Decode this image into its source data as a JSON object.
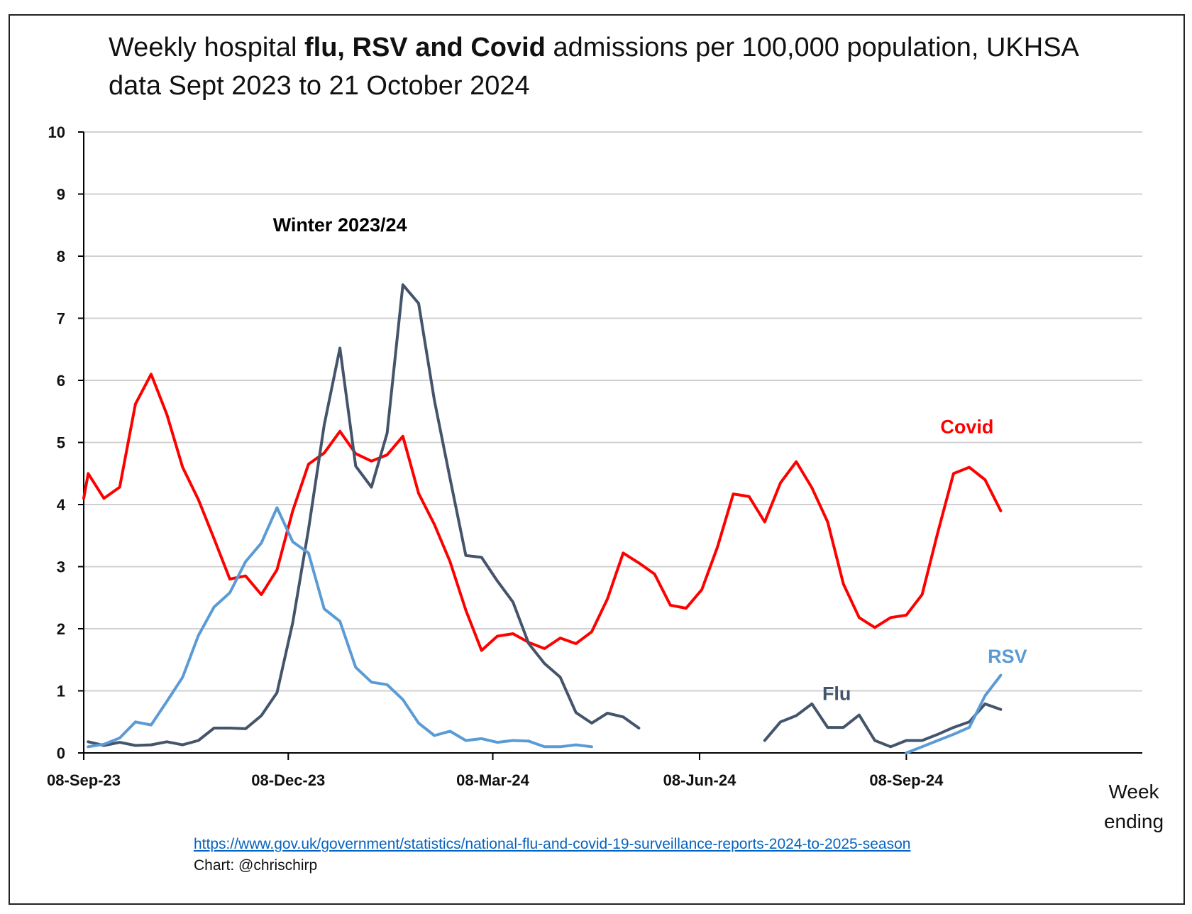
{
  "title": {
    "part1": "Weekly hospital ",
    "bold": "flu, RSV and Covid",
    "part2": " admissions per 100,000 population, UKHSA data Sept 2023 to 21 October 2024"
  },
  "footer": {
    "source_url": "https://www.gov.uk/government/statistics/national-flu-and-covid-19-surveillance-reports-2024-to-2025-season",
    "credit": "Chart: @chrischirp"
  },
  "colors": {
    "covid": "#ff0000",
    "flu": "#44546a",
    "rsv": "#5b9bd5",
    "grid": "#d0d0d0",
    "axis": "#000000"
  },
  "chart_data": {
    "type": "line",
    "xlabel": "Week ending",
    "ylabel": "",
    "ylim": [
      0,
      10
    ],
    "yticks": [
      0,
      1,
      2,
      3,
      4,
      5,
      6,
      7,
      8,
      9,
      10
    ],
    "xlim": [
      "2023-09-08",
      "2024-12-22"
    ],
    "xticks": [
      {
        "date": "2023-09-08",
        "label": "08-Sep-23"
      },
      {
        "date": "2023-12-08",
        "label": "08-Dec-23"
      },
      {
        "date": "2024-03-08",
        "label": "08-Mar-24"
      },
      {
        "date": "2024-06-08",
        "label": "08-Jun-24"
      },
      {
        "date": "2024-09-08",
        "label": "08-Sep-24"
      }
    ],
    "grid": true,
    "annotations": [
      {
        "text": "Winter 2023/24",
        "date": "2023-12-31",
        "y": 8.4,
        "color": "#000000"
      },
      {
        "text": "Covid",
        "date": "2024-10-05",
        "y": 5.15,
        "color": "#ff0000"
      },
      {
        "text": "Flu",
        "date": "2024-08-08",
        "y": 0.85,
        "color": "#44546a"
      },
      {
        "text": "RSV",
        "date": "2024-10-23",
        "y": 1.45,
        "color": "#5b9bd5"
      }
    ],
    "series": [
      {
        "name": "Covid",
        "color": "#ff0000",
        "points": [
          [
            "2023-09-08",
            4.1
          ],
          [
            "2023-09-10",
            4.5
          ],
          [
            "2023-09-17",
            4.1
          ],
          [
            "2023-09-24",
            4.28
          ],
          [
            "2023-10-01",
            5.62
          ],
          [
            "2023-10-08",
            6.1
          ],
          [
            "2023-10-15",
            5.45
          ],
          [
            "2023-10-22",
            4.6
          ],
          [
            "2023-10-29",
            4.08
          ],
          [
            "2023-11-05",
            3.45
          ],
          [
            "2023-11-12",
            2.8
          ],
          [
            "2023-11-19",
            2.85
          ],
          [
            "2023-11-26",
            2.55
          ],
          [
            "2023-12-03",
            2.95
          ],
          [
            "2023-12-10",
            3.9
          ],
          [
            "2023-12-17",
            4.65
          ],
          [
            "2023-12-24",
            4.83
          ],
          [
            "2023-12-31",
            5.18
          ],
          [
            "2024-01-07",
            4.82
          ],
          [
            "2024-01-14",
            4.7
          ],
          [
            "2024-01-21",
            4.8
          ],
          [
            "2024-01-28",
            5.1
          ],
          [
            "2024-02-04",
            4.18
          ],
          [
            "2024-02-11",
            3.68
          ],
          [
            "2024-02-18",
            3.08
          ],
          [
            "2024-02-25",
            2.3
          ],
          [
            "2024-03-03",
            1.65
          ],
          [
            "2024-03-10",
            1.88
          ],
          [
            "2024-03-17",
            1.92
          ],
          [
            "2024-03-24",
            1.78
          ],
          [
            "2024-03-31",
            1.68
          ],
          [
            "2024-04-07",
            1.85
          ],
          [
            "2024-04-14",
            1.76
          ],
          [
            "2024-04-21",
            1.95
          ],
          [
            "2024-04-28",
            2.48
          ],
          [
            "2024-05-05",
            3.22
          ],
          [
            "2024-05-12",
            3.06
          ],
          [
            "2024-05-19",
            2.88
          ],
          [
            "2024-05-26",
            2.38
          ],
          [
            "2024-06-02",
            2.33
          ],
          [
            "2024-06-09",
            2.63
          ],
          [
            "2024-06-16",
            3.32
          ],
          [
            "2024-06-23",
            4.17
          ],
          [
            "2024-06-30",
            4.13
          ],
          [
            "2024-07-07",
            3.72
          ],
          [
            "2024-07-14",
            4.35
          ],
          [
            "2024-07-21",
            4.69
          ],
          [
            "2024-07-28",
            4.27
          ],
          [
            "2024-08-04",
            3.72
          ],
          [
            "2024-08-11",
            2.72
          ],
          [
            "2024-08-18",
            2.18
          ],
          [
            "2024-08-25",
            2.02
          ],
          [
            "2024-09-01",
            2.18
          ],
          [
            "2024-09-08",
            2.22
          ],
          [
            "2024-09-15",
            2.55
          ],
          [
            "2024-09-22",
            3.55
          ],
          [
            "2024-09-29",
            4.5
          ],
          [
            "2024-10-06",
            4.6
          ],
          [
            "2024-10-13",
            4.4
          ],
          [
            "2024-10-20",
            3.9
          ]
        ]
      },
      {
        "name": "Flu",
        "color": "#44546a",
        "points": [
          [
            "2023-09-10",
            0.18
          ],
          [
            "2023-09-17",
            0.12
          ],
          [
            "2023-09-24",
            0.17
          ],
          [
            "2023-10-01",
            0.12
          ],
          [
            "2023-10-08",
            0.13
          ],
          [
            "2023-10-15",
            0.18
          ],
          [
            "2023-10-22",
            0.13
          ],
          [
            "2023-10-29",
            0.2
          ],
          [
            "2023-11-05",
            0.4
          ],
          [
            "2023-11-12",
            0.4
          ],
          [
            "2023-11-19",
            0.39
          ],
          [
            "2023-11-26",
            0.6
          ],
          [
            "2023-12-03",
            0.97
          ],
          [
            "2023-12-10",
            2.1
          ],
          [
            "2023-12-17",
            3.6
          ],
          [
            "2023-12-24",
            5.28
          ],
          [
            "2023-12-31",
            6.52
          ],
          [
            "2024-01-07",
            4.62
          ],
          [
            "2024-01-14",
            4.28
          ],
          [
            "2024-01-21",
            5.15
          ],
          [
            "2024-01-28",
            7.54
          ],
          [
            "2024-02-04",
            7.24
          ],
          [
            "2024-02-11",
            5.68
          ],
          [
            "2024-02-18",
            4.42
          ],
          [
            "2024-02-25",
            3.18
          ],
          [
            "2024-03-03",
            3.15
          ],
          [
            "2024-03-10",
            2.77
          ],
          [
            "2024-03-17",
            2.43
          ],
          [
            "2024-03-24",
            1.76
          ],
          [
            "2024-03-31",
            1.44
          ],
          [
            "2024-04-07",
            1.22
          ],
          [
            "2024-04-14",
            0.65
          ],
          [
            "2024-04-21",
            0.48
          ],
          [
            "2024-04-28",
            0.64
          ],
          [
            "2024-05-05",
            0.58
          ],
          [
            "2024-05-12",
            0.4
          ],
          null,
          [
            "2024-07-07",
            0.2
          ],
          [
            "2024-07-14",
            0.5
          ],
          [
            "2024-07-21",
            0.6
          ],
          [
            "2024-07-28",
            0.79
          ],
          [
            "2024-08-04",
            0.41
          ],
          [
            "2024-08-11",
            0.41
          ],
          [
            "2024-08-18",
            0.61
          ],
          [
            "2024-08-25",
            0.2
          ],
          [
            "2024-09-01",
            0.1
          ],
          [
            "2024-09-08",
            0.2
          ],
          [
            "2024-09-15",
            0.2
          ],
          [
            "2024-09-22",
            0.3
          ],
          [
            "2024-09-29",
            0.41
          ],
          [
            "2024-10-06",
            0.5
          ],
          [
            "2024-10-13",
            0.79
          ],
          [
            "2024-10-20",
            0.7
          ]
        ]
      },
      {
        "name": "RSV",
        "color": "#5b9bd5",
        "points": [
          [
            "2023-09-10",
            0.1
          ],
          [
            "2023-09-17",
            0.14
          ],
          [
            "2023-09-24",
            0.24
          ],
          [
            "2023-10-01",
            0.5
          ],
          [
            "2023-10-08",
            0.45
          ],
          [
            "2023-10-15",
            0.83
          ],
          [
            "2023-10-22",
            1.22
          ],
          [
            "2023-10-29",
            1.89
          ],
          [
            "2023-11-05",
            2.35
          ],
          [
            "2023-11-12",
            2.58
          ],
          [
            "2023-11-19",
            3.08
          ],
          [
            "2023-11-26",
            3.38
          ],
          [
            "2023-12-03",
            3.95
          ],
          [
            "2023-12-10",
            3.4
          ],
          [
            "2023-12-17",
            3.22
          ],
          [
            "2023-12-24",
            2.32
          ],
          [
            "2023-12-31",
            2.12
          ],
          [
            "2024-01-07",
            1.38
          ],
          [
            "2024-01-14",
            1.14
          ],
          [
            "2024-01-21",
            1.1
          ],
          [
            "2024-01-28",
            0.86
          ],
          [
            "2024-02-04",
            0.48
          ],
          [
            "2024-02-11",
            0.28
          ],
          [
            "2024-02-18",
            0.35
          ],
          [
            "2024-02-25",
            0.2
          ],
          [
            "2024-03-03",
            0.23
          ],
          [
            "2024-03-10",
            0.17
          ],
          [
            "2024-03-17",
            0.2
          ],
          [
            "2024-03-24",
            0.19
          ],
          [
            "2024-03-31",
            0.1
          ],
          [
            "2024-04-07",
            0.1
          ],
          [
            "2024-04-14",
            0.13
          ],
          [
            "2024-04-21",
            0.1
          ],
          null,
          [
            "2024-09-08",
            0.0
          ],
          [
            "2024-09-15",
            0.1
          ],
          [
            "2024-09-22",
            0.2
          ],
          [
            "2024-09-29",
            0.3
          ],
          [
            "2024-10-06",
            0.41
          ],
          [
            "2024-10-13",
            0.92
          ],
          [
            "2024-10-20",
            1.25
          ]
        ]
      }
    ]
  }
}
